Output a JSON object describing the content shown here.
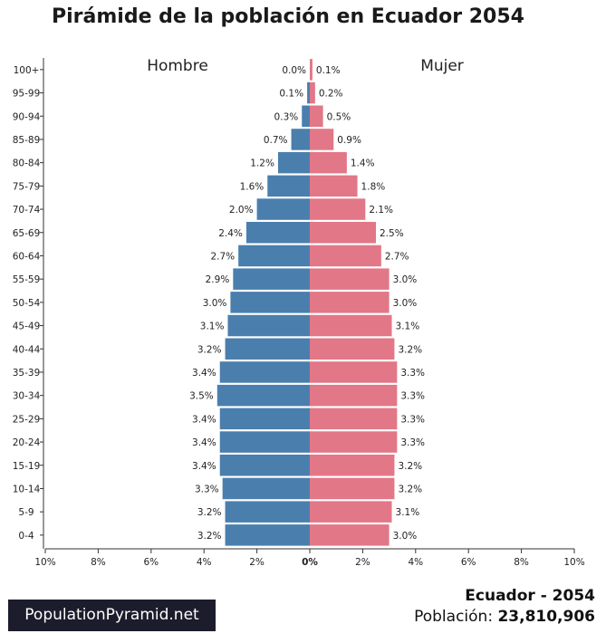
{
  "title": "Pirámide de la población en Ecuador 2054",
  "brand": "PopulationPyramid.net",
  "footer": {
    "country": "Ecuador - 2054",
    "population_label": "Población:",
    "population_value": "23,810,906"
  },
  "chart_data": {
    "type": "bar",
    "orientation": "horizontal-pyramid",
    "categories": [
      "100+",
      "95-99",
      "90-94",
      "85-89",
      "80-84",
      "75-79",
      "70-74",
      "65-69",
      "60-64",
      "55-59",
      "50-54",
      "45-49",
      "40-44",
      "35-39",
      "30-34",
      "25-29",
      "20-24",
      "15-19",
      "10-14",
      "5-9",
      "0-4"
    ],
    "series": [
      {
        "name": "Hombre",
        "side": "left",
        "color": "#4a7fad",
        "values": [
          0.0,
          0.1,
          0.3,
          0.7,
          1.2,
          1.6,
          2.0,
          2.4,
          2.7,
          2.9,
          3.0,
          3.1,
          3.2,
          3.4,
          3.5,
          3.4,
          3.4,
          3.4,
          3.3,
          3.2,
          3.2
        ],
        "labels": [
          "0.0%",
          "0.1%",
          "0.3%",
          "0.7%",
          "1.2%",
          "1.6%",
          "2.0%",
          "2.4%",
          "2.7%",
          "2.9%",
          "3.0%",
          "3.1%",
          "3.2%",
          "3.4%",
          "3.5%",
          "3.4%",
          "3.4%",
          "3.4%",
          "3.3%",
          "3.2%",
          "3.2%"
        ]
      },
      {
        "name": "Mujer",
        "side": "right",
        "color": "#e27787",
        "values": [
          0.1,
          0.2,
          0.5,
          0.9,
          1.4,
          1.8,
          2.1,
          2.5,
          2.7,
          3.0,
          3.0,
          3.1,
          3.2,
          3.3,
          3.3,
          3.3,
          3.3,
          3.2,
          3.2,
          3.1,
          3.0
        ],
        "labels": [
          "0.1%",
          "0.2%",
          "0.5%",
          "0.9%",
          "1.4%",
          "1.8%",
          "2.1%",
          "2.5%",
          "2.7%",
          "3.0%",
          "3.0%",
          "3.1%",
          "3.2%",
          "3.3%",
          "3.3%",
          "3.3%",
          "3.3%",
          "3.2%",
          "3.2%",
          "3.1%",
          "3.0%"
        ]
      }
    ],
    "x_ticks": [
      "10%",
      "8%",
      "6%",
      "4%",
      "2%",
      "0%",
      "2%",
      "4%",
      "6%",
      "8%",
      "10%"
    ],
    "xlim": [
      -10,
      10
    ]
  }
}
